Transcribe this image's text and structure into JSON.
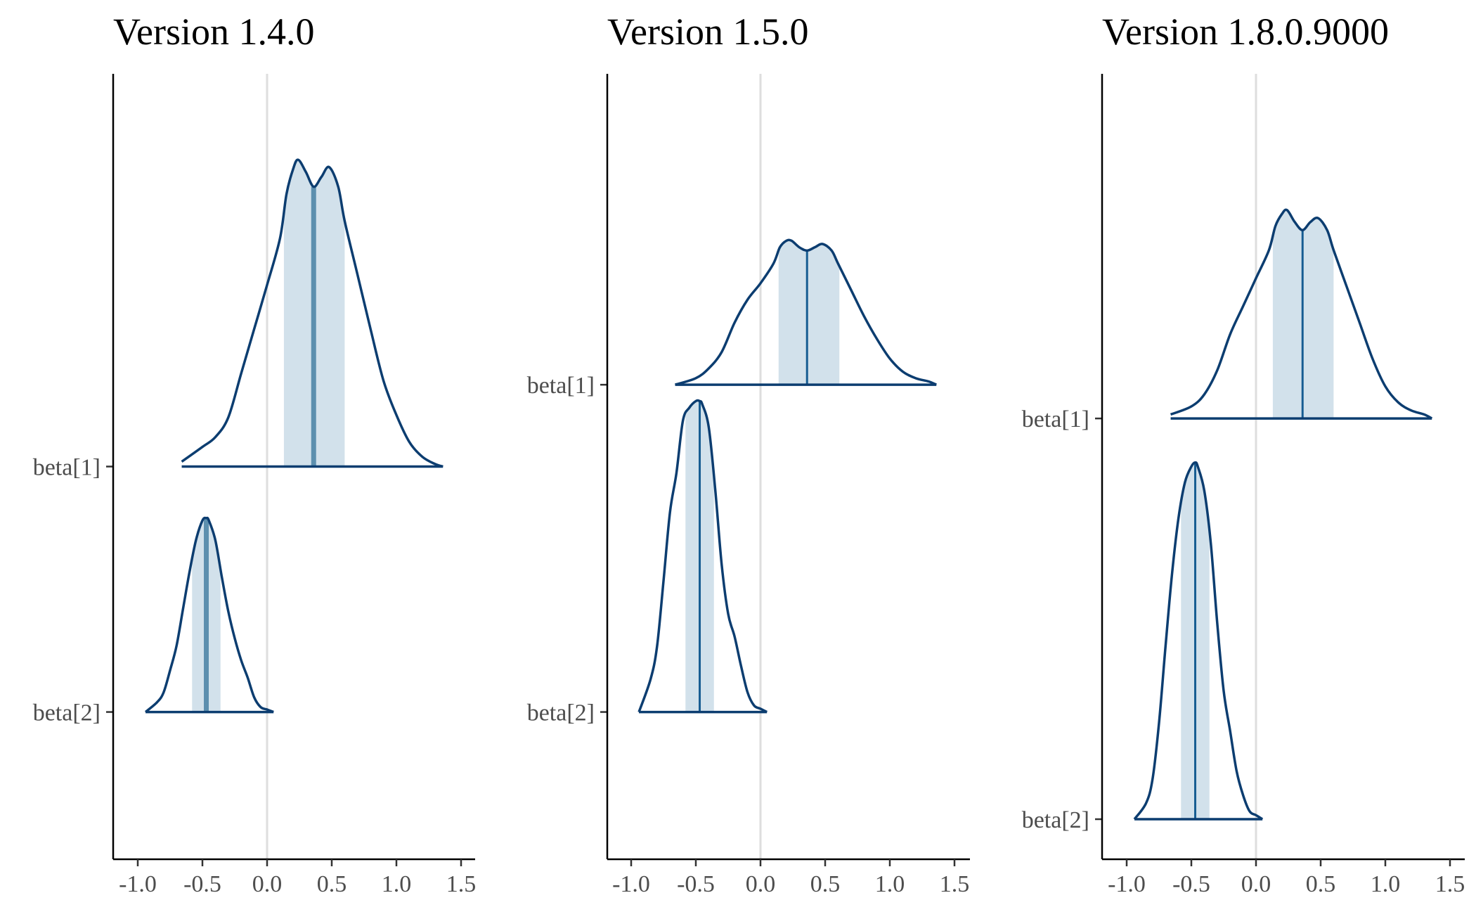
{
  "colors": {
    "outline": "#0c3d70",
    "interval_fill": "#d2e1eb",
    "median_thick": "#5c8fae",
    "median_thin": "#175d92",
    "zero_line": "#dedede",
    "axis": "#000000",
    "tick_text": "#4d4d4d"
  },
  "chart_data": [
    {
      "type": "area",
      "chart_kind": "ridgeline density (mcmc_areas)",
      "title": "Version 1.4.0",
      "x_ticks": [
        "-1.0",
        "-0.5",
        "0.0",
        "0.5",
        "1.0",
        "1.5"
      ],
      "x_tick_values": [
        -1.0,
        -0.5,
        0.0,
        0.5,
        1.0,
        1.5
      ],
      "xlim": [
        -1.1,
        1.6
      ],
      "y_categories": [
        "beta[1]",
        "beta[2]"
      ],
      "ylim": [
        -0.6,
        2.6
      ],
      "median_style": "thick",
      "series": [
        {
          "name": "beta[1]",
          "baseline": 1,
          "peak_height": 1.3,
          "x_range": [
            -0.66,
            1.36
          ],
          "interval": [
            0.13,
            0.6
          ],
          "median": 0.36,
          "curve_x": [
            -0.66,
            -0.5,
            -0.4,
            -0.3,
            -0.2,
            -0.1,
            0.0,
            0.1,
            0.15,
            0.2,
            0.24,
            0.3,
            0.36,
            0.42,
            0.48,
            0.55,
            0.6,
            0.7,
            0.8,
            0.9,
            1.0,
            1.1,
            1.2,
            1.3,
            1.36
          ],
          "curve_y": [
            0.02,
            0.08,
            0.12,
            0.2,
            0.38,
            0.56,
            0.74,
            0.93,
            1.11,
            1.21,
            1.25,
            1.2,
            1.14,
            1.18,
            1.22,
            1.14,
            1.0,
            0.78,
            0.56,
            0.35,
            0.21,
            0.1,
            0.04,
            0.01,
            0.0
          ]
        },
        {
          "name": "beta[2]",
          "baseline": 0,
          "peak_height": 0.8,
          "x_range": [
            -0.94,
            0.05
          ],
          "interval": [
            -0.58,
            -0.36
          ],
          "median": -0.47,
          "curve_x": [
            -0.94,
            -0.85,
            -0.8,
            -0.75,
            -0.7,
            -0.65,
            -0.6,
            -0.55,
            -0.5,
            -0.47,
            -0.45,
            -0.4,
            -0.35,
            -0.3,
            -0.25,
            -0.2,
            -0.15,
            -0.1,
            -0.05,
            0.0,
            0.05
          ],
          "curve_y": [
            0.0,
            0.04,
            0.08,
            0.17,
            0.27,
            0.42,
            0.57,
            0.7,
            0.78,
            0.79,
            0.78,
            0.7,
            0.55,
            0.41,
            0.3,
            0.21,
            0.14,
            0.06,
            0.02,
            0.01,
            0.0
          ]
        }
      ]
    },
    {
      "type": "area",
      "chart_kind": "ridgeline density (mcmc_areas)",
      "title": "Version 1.5.0",
      "x_ticks": [
        "-1.0",
        "-0.5",
        "0.0",
        "0.5",
        "1.0",
        "1.5"
      ],
      "x_tick_values": [
        -1.0,
        -0.5,
        0.0,
        0.5,
        1.0,
        1.5
      ],
      "xlim": [
        -1.1,
        1.6
      ],
      "y_categories": [
        "beta[1]",
        "beta[2]"
      ],
      "ylim": [
        -0.45,
        1.95
      ],
      "median_style": "thin",
      "series": [
        {
          "name": "beta[1]",
          "baseline": 1,
          "peak_height": 0.45,
          "x_range": [
            -0.66,
            1.36
          ],
          "interval": [
            0.14,
            0.61
          ],
          "median": 0.36,
          "curve_x": [
            -0.66,
            -0.5,
            -0.4,
            -0.3,
            -0.2,
            -0.1,
            0.0,
            0.1,
            0.15,
            0.2,
            0.24,
            0.3,
            0.36,
            0.42,
            0.48,
            0.55,
            0.6,
            0.7,
            0.8,
            0.9,
            1.0,
            1.1,
            1.2,
            1.3,
            1.36
          ],
          "curve_y": [
            0.0,
            0.02,
            0.05,
            0.1,
            0.19,
            0.26,
            0.31,
            0.37,
            0.42,
            0.44,
            0.44,
            0.42,
            0.41,
            0.42,
            0.43,
            0.41,
            0.37,
            0.29,
            0.21,
            0.14,
            0.08,
            0.04,
            0.02,
            0.01,
            0.0
          ]
        },
        {
          "name": "beta[2]",
          "baseline": 0,
          "peak_height": 0.95,
          "x_range": [
            -0.94,
            0.05
          ],
          "interval": [
            -0.58,
            -0.36
          ],
          "median": -0.47,
          "curve_x": [
            -0.94,
            -0.85,
            -0.8,
            -0.75,
            -0.7,
            -0.65,
            -0.6,
            -0.55,
            -0.5,
            -0.47,
            -0.45,
            -0.4,
            -0.35,
            -0.3,
            -0.25,
            -0.2,
            -0.15,
            -0.1,
            -0.05,
            0.0,
            0.05
          ],
          "curve_y": [
            0.0,
            0.1,
            0.2,
            0.4,
            0.61,
            0.73,
            0.89,
            0.93,
            0.95,
            0.95,
            0.94,
            0.87,
            0.68,
            0.45,
            0.3,
            0.23,
            0.14,
            0.06,
            0.02,
            0.01,
            0.0
          ]
        }
      ]
    },
    {
      "type": "area",
      "chart_kind": "ridgeline density (mcmc_areas)",
      "title": "Version 1.8.0.9000",
      "x_ticks": [
        "-1.0",
        "-0.5",
        "0.0",
        "0.5",
        "1.0",
        "1.5"
      ],
      "x_tick_values": [
        -1.0,
        -0.5,
        0.0,
        0.5,
        1.0,
        1.5
      ],
      "xlim": [
        -1.1,
        1.6
      ],
      "y_categories": [
        "beta[1]",
        "beta[2]"
      ],
      "ylim": [
        -0.1,
        1.86
      ],
      "median_style": "thin",
      "series": [
        {
          "name": "beta[1]",
          "baseline": 1,
          "peak_height": 0.52,
          "x_range": [
            -0.66,
            1.36
          ],
          "interval": [
            0.13,
            0.6
          ],
          "median": 0.36,
          "curve_x": [
            -0.66,
            -0.5,
            -0.4,
            -0.3,
            -0.2,
            -0.1,
            0.0,
            0.1,
            0.15,
            0.2,
            0.24,
            0.3,
            0.36,
            0.42,
            0.48,
            0.55,
            0.6,
            0.7,
            0.8,
            0.9,
            1.0,
            1.1,
            1.2,
            1.3,
            1.36
          ],
          "curve_y": [
            0.01,
            0.03,
            0.06,
            0.12,
            0.21,
            0.28,
            0.35,
            0.42,
            0.48,
            0.51,
            0.52,
            0.49,
            0.47,
            0.49,
            0.5,
            0.47,
            0.42,
            0.33,
            0.24,
            0.15,
            0.08,
            0.04,
            0.02,
            0.01,
            0.0
          ]
        },
        {
          "name": "beta[2]",
          "baseline": 0,
          "peak_height": 0.9,
          "x_range": [
            -0.94,
            0.05
          ],
          "interval": [
            -0.58,
            -0.36
          ],
          "median": -0.47,
          "curve_x": [
            -0.94,
            -0.85,
            -0.8,
            -0.75,
            -0.7,
            -0.65,
            -0.6,
            -0.55,
            -0.5,
            -0.47,
            -0.45,
            -0.4,
            -0.35,
            -0.3,
            -0.25,
            -0.2,
            -0.15,
            -0.1,
            -0.05,
            0.0,
            0.05
          ],
          "curve_y": [
            0.0,
            0.04,
            0.1,
            0.24,
            0.43,
            0.61,
            0.75,
            0.84,
            0.88,
            0.89,
            0.88,
            0.82,
            0.69,
            0.49,
            0.32,
            0.22,
            0.12,
            0.06,
            0.02,
            0.01,
            0.0
          ]
        }
      ]
    }
  ]
}
